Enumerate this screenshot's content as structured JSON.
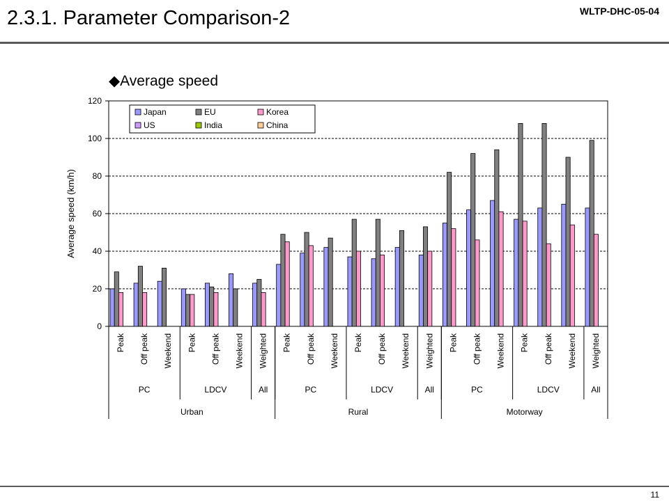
{
  "header": {
    "title": "2.3.1. Parameter Comparison-2",
    "doc_id": "WLTP-DHC-05-04",
    "subtitle": "◆Average speed"
  },
  "footer": {
    "page_number": "11"
  },
  "colors": {
    "Japan": "#9999ff",
    "EU": "#808080",
    "Korea": "#ff99cc",
    "US": "#cc99ff",
    "India": "#99cc00",
    "China": "#ffcc99"
  },
  "chart_data": {
    "type": "bar",
    "ylabel": "Average speed (km/h)",
    "ylim": [
      0,
      120
    ],
    "yticks": [
      0,
      20,
      40,
      60,
      80,
      100,
      120
    ],
    "grid": true,
    "legend_position": "top-left",
    "legend": [
      "Japan",
      "EU",
      "Korea",
      "US",
      "India",
      "China"
    ],
    "categories": [
      "Peak",
      "Off peak",
      "Weekend",
      "Peak",
      "Off peak",
      "Weekend",
      "Weighted",
      "Peak",
      "Off peak",
      "Weekend",
      "Peak",
      "Off peak",
      "Weekend",
      "Weighted",
      "Peak",
      "Off peak",
      "Weekend",
      "Peak",
      "Off peak",
      "Weekend",
      "Weighted"
    ],
    "vehicle_groups": [
      {
        "label": "PC",
        "span": 3
      },
      {
        "label": "LDCV",
        "span": 3
      },
      {
        "label": "All",
        "span": 1
      },
      {
        "label": "PC",
        "span": 3
      },
      {
        "label": "LDCV",
        "span": 3
      },
      {
        "label": "All",
        "span": 1
      },
      {
        "label": "PC",
        "span": 3
      },
      {
        "label": "LDCV",
        "span": 3
      },
      {
        "label": "All",
        "span": 1
      }
    ],
    "road_groups": [
      {
        "label": "Urban",
        "span": 7
      },
      {
        "label": "Rural",
        "span": 7
      },
      {
        "label": "Motorway",
        "span": 7
      }
    ],
    "series": [
      {
        "name": "Japan",
        "values": [
          20,
          23,
          24,
          20,
          23,
          28,
          23,
          33,
          39,
          42,
          37,
          36,
          42,
          38,
          55,
          62,
          67,
          57,
          63,
          65,
          63
        ]
      },
      {
        "name": "EU",
        "values": [
          29,
          32,
          31,
          17,
          21,
          20,
          25,
          49,
          50,
          47,
          57,
          57,
          51,
          53,
          82,
          92,
          94,
          108,
          108,
          90,
          99
        ]
      },
      {
        "name": "Korea",
        "values": [
          18,
          18,
          null,
          17,
          18,
          null,
          18,
          45,
          43,
          null,
          40,
          38,
          null,
          40,
          52,
          46,
          61,
          56,
          44,
          54,
          49
        ]
      },
      {
        "name": "US",
        "values": [
          null,
          null,
          null,
          null,
          null,
          null,
          null,
          null,
          null,
          null,
          null,
          null,
          null,
          null,
          null,
          null,
          null,
          null,
          null,
          null,
          null
        ]
      },
      {
        "name": "India",
        "values": [
          null,
          null,
          null,
          null,
          null,
          null,
          null,
          null,
          null,
          null,
          null,
          null,
          null,
          null,
          null,
          null,
          null,
          null,
          null,
          null,
          null
        ]
      },
      {
        "name": "China",
        "values": [
          null,
          null,
          null,
          null,
          null,
          null,
          null,
          null,
          null,
          null,
          null,
          null,
          null,
          null,
          null,
          null,
          null,
          null,
          null,
          null,
          null
        ]
      }
    ]
  }
}
